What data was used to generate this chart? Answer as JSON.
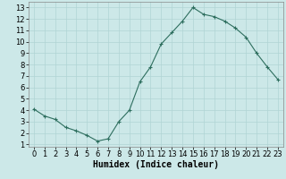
{
  "x": [
    0,
    1,
    2,
    3,
    4,
    5,
    6,
    7,
    8,
    9,
    10,
    11,
    12,
    13,
    14,
    15,
    16,
    17,
    18,
    19,
    20,
    21,
    22,
    23
  ],
  "y": [
    4.1,
    3.5,
    3.2,
    2.5,
    2.2,
    1.8,
    1.3,
    1.5,
    3.0,
    4.0,
    6.5,
    7.8,
    9.8,
    10.8,
    11.8,
    13.0,
    12.4,
    12.2,
    11.8,
    11.2,
    10.4,
    9.0,
    7.8,
    6.7
  ],
  "line_color": "#2d6e5e",
  "marker": "+",
  "marker_size": 3,
  "xlabel": "Humidex (Indice chaleur)",
  "xlim": [
    -0.5,
    23.5
  ],
  "ylim": [
    0.8,
    13.5
  ],
  "yticks": [
    1,
    2,
    3,
    4,
    5,
    6,
    7,
    8,
    9,
    10,
    11,
    12,
    13
  ],
  "xticks": [
    0,
    1,
    2,
    3,
    4,
    5,
    6,
    7,
    8,
    9,
    10,
    11,
    12,
    13,
    14,
    15,
    16,
    17,
    18,
    19,
    20,
    21,
    22,
    23
  ],
  "background_color": "#cce8e8",
  "grid_color": "#b0d4d4",
  "xlabel_fontsize": 7,
  "tick_fontsize": 6
}
